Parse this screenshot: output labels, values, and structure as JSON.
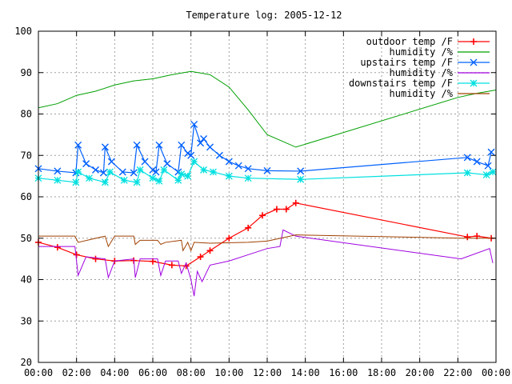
{
  "chart_data": {
    "type": "line",
    "title": "Temperature log: 2005-12-12",
    "xlabel": "",
    "ylabel": "",
    "xlim": [
      "00:00",
      "24:00"
    ],
    "ylim": [
      20,
      100
    ],
    "grid": true,
    "legend_position": "top-right",
    "x_ticks": [
      "00:00",
      "02:00",
      "04:00",
      "06:00",
      "08:00",
      "10:00",
      "12:00",
      "14:00",
      "16:00",
      "18:00",
      "20:00",
      "22:00",
      "00:00"
    ],
    "y_ticks": [
      "20",
      "30",
      "40",
      "50",
      "60",
      "70",
      "80",
      "90",
      "100"
    ],
    "series": [
      {
        "name": "outdoor temp /F",
        "color": "#ff0000",
        "marker": "plus",
        "points": [
          [
            "00:00",
            49.0
          ],
          [
            "01:00",
            47.8
          ],
          [
            "02:00",
            46.0
          ],
          [
            "03:00",
            45.0
          ],
          [
            "04:00",
            44.5
          ],
          [
            "05:00",
            44.6
          ],
          [
            "06:00",
            44.4
          ],
          [
            "07:00",
            43.5
          ],
          [
            "07:45",
            43.3
          ],
          [
            "08:30",
            45.5
          ],
          [
            "09:00",
            47.0
          ],
          [
            "10:00",
            50.0
          ],
          [
            "11:00",
            52.5
          ],
          [
            "11:45",
            55.5
          ],
          [
            "12:30",
            57.0
          ],
          [
            "13:00",
            57.0
          ],
          [
            "13:30",
            58.5
          ],
          [
            "22:30",
            50.3
          ],
          [
            "23:00",
            50.5
          ],
          [
            "23:45",
            50.0
          ]
        ]
      },
      {
        "name": "humidity /%",
        "color": "#00a000",
        "marker": "none",
        "points": [
          [
            "00:00",
            81.5
          ],
          [
            "01:00",
            82.5
          ],
          [
            "02:00",
            84.5
          ],
          [
            "03:00",
            85.5
          ],
          [
            "04:00",
            87.0
          ],
          [
            "05:00",
            88.0
          ],
          [
            "06:00",
            88.5
          ],
          [
            "07:00",
            89.5
          ],
          [
            "08:00",
            90.3
          ],
          [
            "09:00",
            89.5
          ],
          [
            "10:00",
            86.5
          ],
          [
            "11:00",
            81.0
          ],
          [
            "12:00",
            75.0
          ],
          [
            "13:00",
            73.0
          ],
          [
            "13:30",
            72.0
          ],
          [
            "22:00",
            84.0
          ],
          [
            "23:00",
            85.0
          ],
          [
            "24:00",
            85.8
          ]
        ]
      },
      {
        "name": "upstairs temp /F",
        "color": "#0060ff",
        "marker": "cross",
        "points": [
          [
            "00:00",
            66.8
          ],
          [
            "01:00",
            66.2
          ],
          [
            "01:58",
            65.8
          ],
          [
            "02:05",
            72.5
          ],
          [
            "02:30",
            68.0
          ],
          [
            "03:00",
            66.5
          ],
          [
            "03:25",
            65.8
          ],
          [
            "03:30",
            72.0
          ],
          [
            "03:50",
            68.5
          ],
          [
            "04:25",
            66.0
          ],
          [
            "05:00",
            65.8
          ],
          [
            "05:10",
            72.5
          ],
          [
            "05:35",
            68.5
          ],
          [
            "06:00",
            66.5
          ],
          [
            "06:10",
            66.0
          ],
          [
            "06:20",
            72.5
          ],
          [
            "06:45",
            68.0
          ],
          [
            "07:20",
            66.0
          ],
          [
            "07:30",
            72.5
          ],
          [
            "07:50",
            70.5
          ],
          [
            "08:00",
            70.0
          ],
          [
            "08:10",
            77.5
          ],
          [
            "08:30",
            73.0
          ],
          [
            "08:40",
            74.0
          ],
          [
            "09:00",
            72.0
          ],
          [
            "09:30",
            70.0
          ],
          [
            "10:00",
            68.5
          ],
          [
            "10:30",
            67.5
          ],
          [
            "11:00",
            66.8
          ],
          [
            "12:00",
            66.3
          ],
          [
            "13:45",
            66.2
          ],
          [
            "22:30",
            69.5
          ],
          [
            "23:00",
            68.5
          ],
          [
            "23:35",
            67.5
          ],
          [
            "23:45",
            70.8
          ]
        ]
      },
      {
        "name": "humidity /%",
        "color": "#a000e0",
        "marker": "none",
        "points": [
          [
            "00:00",
            48.0
          ],
          [
            "01:00",
            48.0
          ],
          [
            "01:55",
            48.0
          ],
          [
            "02:05",
            41.0
          ],
          [
            "02:30",
            45.5
          ],
          [
            "03:30",
            45.0
          ],
          [
            "03:40",
            40.5
          ],
          [
            "04:00",
            44.5
          ],
          [
            "05:00",
            45.0
          ],
          [
            "05:05",
            40.5
          ],
          [
            "05:20",
            45.0
          ],
          [
            "06:15",
            45.0
          ],
          [
            "06:25",
            41.0
          ],
          [
            "06:40",
            44.5
          ],
          [
            "07:20",
            44.5
          ],
          [
            "07:30",
            41.5
          ],
          [
            "07:45",
            44.0
          ],
          [
            "08:00",
            40.0
          ],
          [
            "08:10",
            36.0
          ],
          [
            "08:20",
            42.0
          ],
          [
            "08:35",
            39.5
          ],
          [
            "09:00",
            43.5
          ],
          [
            "10:00",
            44.5
          ],
          [
            "11:00",
            46.0
          ],
          [
            "12:00",
            47.5
          ],
          [
            "12:40",
            48.0
          ],
          [
            "12:50",
            52.0
          ],
          [
            "13:30",
            50.5
          ],
          [
            "22:10",
            45.0
          ],
          [
            "23:40",
            47.5
          ],
          [
            "23:50",
            44.0
          ]
        ]
      },
      {
        "name": "downstairs temp /F",
        "color": "#00e0e0",
        "marker": "star",
        "points": [
          [
            "00:00",
            64.5
          ],
          [
            "01:00",
            64.0
          ],
          [
            "01:58",
            63.5
          ],
          [
            "02:05",
            66.0
          ],
          [
            "02:40",
            64.5
          ],
          [
            "03:30",
            63.5
          ],
          [
            "03:45",
            66.0
          ],
          [
            "04:30",
            64.0
          ],
          [
            "05:10",
            63.5
          ],
          [
            "05:20",
            66.5
          ],
          [
            "06:00",
            64.5
          ],
          [
            "06:20",
            63.8
          ],
          [
            "06:35",
            66.5
          ],
          [
            "07:20",
            64.0
          ],
          [
            "07:30",
            65.5
          ],
          [
            "07:50",
            65.0
          ],
          [
            "08:10",
            68.5
          ],
          [
            "08:40",
            66.5
          ],
          [
            "09:10",
            66.0
          ],
          [
            "10:00",
            65.0
          ],
          [
            "11:00",
            64.5
          ],
          [
            "13:45",
            64.2
          ],
          [
            "22:30",
            65.8
          ],
          [
            "23:30",
            65.3
          ],
          [
            "23:50",
            66.0
          ]
        ]
      },
      {
        "name": "humidity /%",
        "color": "#a04000",
        "marker": "none",
        "points": [
          [
            "00:00",
            50.5
          ],
          [
            "01:55",
            50.5
          ],
          [
            "02:05",
            49.0
          ],
          [
            "03:30",
            50.5
          ],
          [
            "03:40",
            48.0
          ],
          [
            "04:00",
            50.5
          ],
          [
            "05:00",
            50.5
          ],
          [
            "05:05",
            48.5
          ],
          [
            "05:20",
            49.5
          ],
          [
            "06:15",
            49.5
          ],
          [
            "06:25",
            48.5
          ],
          [
            "06:40",
            49.0
          ],
          [
            "07:30",
            49.5
          ],
          [
            "07:35",
            47.0
          ],
          [
            "07:50",
            49.0
          ],
          [
            "08:00",
            47.0
          ],
          [
            "08:10",
            49.0
          ],
          [
            "09:00",
            48.8
          ],
          [
            "11:00",
            49.0
          ],
          [
            "12:00",
            49.3
          ],
          [
            "13:30",
            50.8
          ],
          [
            "22:10",
            50.0
          ],
          [
            "24:00",
            50.0
          ]
        ]
      }
    ]
  }
}
